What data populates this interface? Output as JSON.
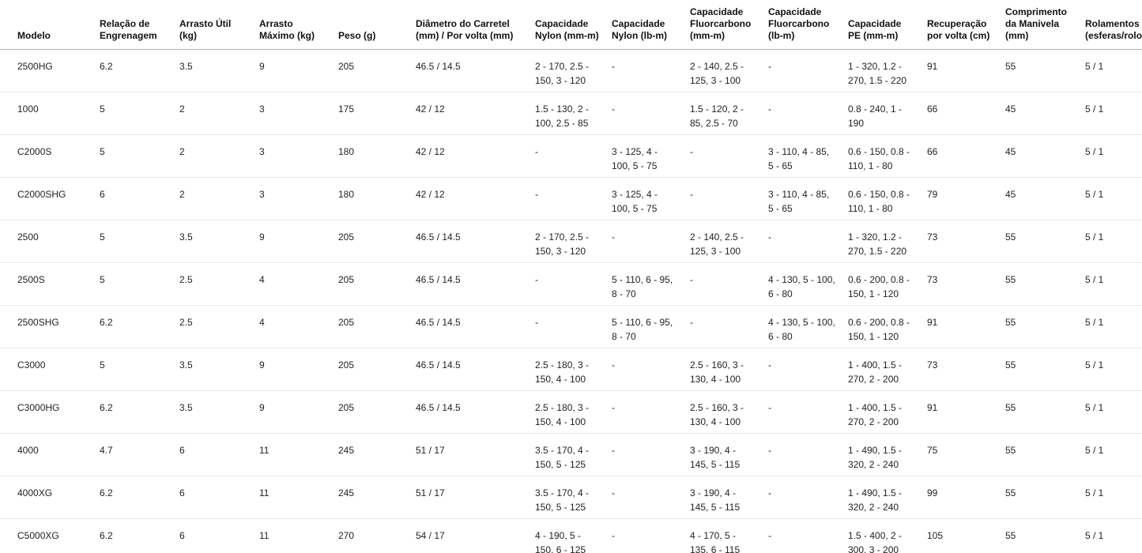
{
  "table": {
    "columns": [
      {
        "id": "model",
        "label": "Modelo"
      },
      {
        "id": "gear-ratio",
        "label": "Relação de Engrenagem"
      },
      {
        "id": "drag-util",
        "label": "Arrasto Útil (kg)"
      },
      {
        "id": "drag-max",
        "label": "Arrasto Máximo (kg)"
      },
      {
        "id": "weight",
        "label": "Peso (g)"
      },
      {
        "id": "spool-diameter",
        "label": "Diâmetro do Carretel (mm) / Por volta (mm)"
      },
      {
        "id": "cap-nylon-mm",
        "label": "Capacidade Nylon (mm-m)"
      },
      {
        "id": "cap-nylon-lb",
        "label": "Capacidade Nylon (lb-m)"
      },
      {
        "id": "cap-fluor-mm",
        "label": "Capacidade Fluorcarbono (mm-m)"
      },
      {
        "id": "cap-fluor-lb",
        "label": "Capacidade Fluorcarbono (lb-m)"
      },
      {
        "id": "cap-pe",
        "label": "Capacidade PE (mm-m)"
      },
      {
        "id": "recovery",
        "label": "Recuperação por volta (cm)"
      },
      {
        "id": "handle-length",
        "label": "Comprimento da Manivela (mm)"
      },
      {
        "id": "bearings",
        "label": "Rolamentos (esferas/rolos)"
      }
    ],
    "rows": [
      {
        "cells": [
          "2500HG",
          "6.2",
          "3.5",
          "9",
          "205",
          "46.5 / 14.5",
          "2 - 170, 2.5 - 150, 3 - 120",
          "-",
          "2 - 140, 2.5 - 125, 3 - 100",
          "-",
          "1 - 320, 1.2 - 270, 1.5 - 220",
          "91",
          "55",
          "5 / 1"
        ]
      },
      {
        "cells": [
          "1000",
          "5",
          "2",
          "3",
          "175",
          "42 / 12",
          "1.5 - 130, 2 - 100, 2.5 - 85",
          "-",
          "1.5 - 120, 2 - 85, 2.5 - 70",
          "-",
          "0.8 - 240, 1 - 190",
          "66",
          "45",
          "5 / 1"
        ]
      },
      {
        "cells": [
          "C2000S",
          "5",
          "2",
          "3",
          "180",
          "42 / 12",
          "-",
          "3 - 125, 4 - 100, 5 - 75",
          "-",
          "3 - 110, 4 - 85, 5 - 65",
          "0.6 - 150, 0.8 - 110, 1 - 80",
          "66",
          "45",
          "5 / 1"
        ]
      },
      {
        "cells": [
          "C2000SHG",
          "6",
          "2",
          "3",
          "180",
          "42 / 12",
          "-",
          "3 - 125, 4 - 100, 5 - 75",
          "-",
          "3 - 110, 4 - 85, 5 - 65",
          "0.6 - 150, 0.8 - 110, 1 - 80",
          "79",
          "45",
          "5 / 1"
        ]
      },
      {
        "cells": [
          "2500",
          "5",
          "3.5",
          "9",
          "205",
          "46.5 / 14.5",
          "2 - 170, 2.5 - 150, 3 - 120",
          "-",
          "2 - 140, 2.5 - 125, 3 - 100",
          "-",
          "1 - 320, 1.2 - 270, 1.5 - 220",
          "73",
          "55",
          "5 / 1"
        ]
      },
      {
        "cells": [
          "2500S",
          "5",
          "2.5",
          "4",
          "205",
          "46.5 / 14.5",
          "-",
          "5 - 110, 6 - 95, 8 - 70",
          "-",
          "4 - 130, 5 - 100, 6 - 80",
          "0.6 - 200, 0.8 - 150, 1 - 120",
          "73",
          "55",
          "5 / 1"
        ]
      },
      {
        "cells": [
          "2500SHG",
          "6.2",
          "2.5",
          "4",
          "205",
          "46.5 / 14.5",
          "-",
          "5 - 110, 6 - 95, 8 - 70",
          "-",
          "4 - 130, 5 - 100, 6 - 80",
          "0.6 - 200, 0.8 - 150, 1 - 120",
          "91",
          "55",
          "5 / 1"
        ]
      },
      {
        "cells": [
          "C3000",
          "5",
          "3.5",
          "9",
          "205",
          "46.5 / 14.5",
          "2.5 - 180, 3 - 150, 4 - 100",
          "-",
          "2.5 - 160, 3 - 130, 4 - 100",
          "-",
          "1 - 400, 1.5 - 270, 2 - 200",
          "73",
          "55",
          "5 / 1"
        ]
      },
      {
        "cells": [
          "C3000HG",
          "6.2",
          "3.5",
          "9",
          "205",
          "46.5 / 14.5",
          "2.5 - 180, 3 - 150, 4 - 100",
          "-",
          "2.5 - 160, 3 - 130, 4 - 100",
          "-",
          "1 - 400, 1.5 - 270, 2 - 200",
          "91",
          "55",
          "5 / 1"
        ]
      },
      {
        "cells": [
          "4000",
          "4.7",
          "6",
          "11",
          "245",
          "51 / 17",
          "3.5 - 170, 4 - 150, 5 - 125",
          "-",
          "3 - 190, 4 - 145, 5 - 115",
          "-",
          "1 - 490, 1.5 - 320, 2 - 240",
          "75",
          "55",
          "5 / 1"
        ]
      },
      {
        "cells": [
          "4000XG",
          "6.2",
          "6",
          "11",
          "245",
          "51 / 17",
          "3.5 - 170, 4 - 150, 5 - 125",
          "-",
          "3 - 190, 4 - 145, 5 - 115",
          "-",
          "1 - 490, 1.5 - 320, 2 - 240",
          "99",
          "55",
          "5 / 1"
        ]
      },
      {
        "cells": [
          "C5000XG",
          "6.2",
          "6",
          "11",
          "270",
          "54 / 17",
          "4 - 190, 5 - 150, 6 - 125",
          "-",
          "4 - 170, 5 - 135, 6 - 115",
          "-",
          "1.5 - 400, 2 - 300, 3 - 200",
          "105",
          "55",
          "5 / 1"
        ]
      }
    ]
  }
}
